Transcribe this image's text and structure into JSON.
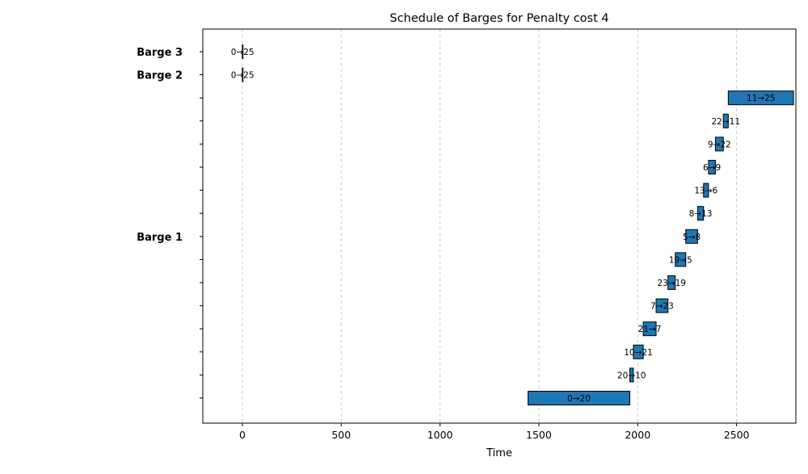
{
  "chart_data": {
    "type": "gantt",
    "title": "Schedule of Barges for Penalty cost 4",
    "xlabel": "Time",
    "ylabel": "",
    "xlim": [
      -200,
      2800
    ],
    "x_ticks": [
      0,
      500,
      1000,
      1500,
      2000,
      2500
    ],
    "grid": "vertical",
    "row_labels": [
      {
        "label": "Barge 3",
        "row": 15
      },
      {
        "label": "Barge 2",
        "row": 14
      },
      {
        "label": "Barge 1",
        "row": 7
      }
    ],
    "row_count": 16,
    "tasks": [
      {
        "row": 0,
        "label": "0→20",
        "start": 1445,
        "end": 1960
      },
      {
        "row": 1,
        "label": "20→10",
        "start": 1960,
        "end": 1978
      },
      {
        "row": 2,
        "label": "10→21",
        "start": 1978,
        "end": 2028
      },
      {
        "row": 3,
        "label": "21→7",
        "start": 2028,
        "end": 2093
      },
      {
        "row": 4,
        "label": "7→23",
        "start": 2093,
        "end": 2153
      },
      {
        "row": 5,
        "label": "23→19",
        "start": 2153,
        "end": 2190
      },
      {
        "row": 6,
        "label": "19→5",
        "start": 2190,
        "end": 2243
      },
      {
        "row": 7,
        "label": "5→8",
        "start": 2243,
        "end": 2303
      },
      {
        "row": 8,
        "label": "8→13",
        "start": 2303,
        "end": 2333
      },
      {
        "row": 9,
        "label": "13→6",
        "start": 2333,
        "end": 2358
      },
      {
        "row": 10,
        "label": "6→9",
        "start": 2358,
        "end": 2393
      },
      {
        "row": 11,
        "label": "9→22",
        "start": 2393,
        "end": 2433
      },
      {
        "row": 12,
        "label": "22→11",
        "start": 2433,
        "end": 2458
      },
      {
        "row": 13,
        "label": "11→25",
        "start": 2458,
        "end": 2788
      },
      {
        "row": 14,
        "label": "0→25",
        "start": 0,
        "end": 2
      },
      {
        "row": 15,
        "label": "0→25",
        "start": 0,
        "end": 2
      }
    ]
  }
}
